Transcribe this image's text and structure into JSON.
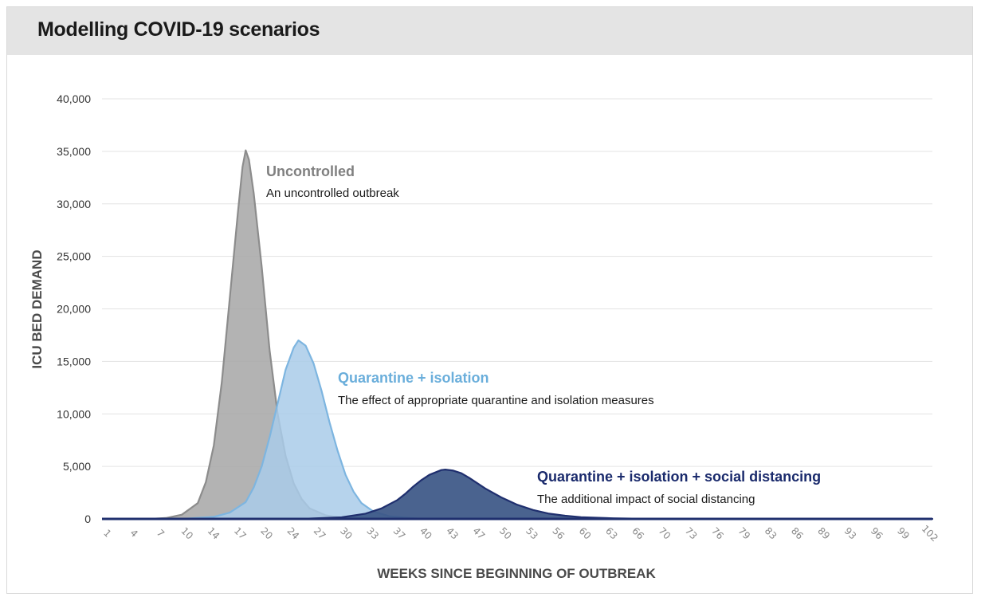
{
  "chart_data": {
    "type": "area",
    "title": "Modelling COVID-19 scenarios",
    "xlabel": "WEEKS SINCE BEGINNING OF OUTBREAK",
    "ylabel": "ICU BED DEMAND",
    "ylim": [
      0,
      40000
    ],
    "yticks": [
      {
        "value": 0,
        "label": "0"
      },
      {
        "value": 5000,
        "label": "5,000"
      },
      {
        "value": 10000,
        "label": "10,000"
      },
      {
        "value": 15000,
        "label": "15,000"
      },
      {
        "value": 20000,
        "label": "20,000"
      },
      {
        "value": 25000,
        "label": "25,000"
      },
      {
        "value": 30000,
        "label": "30,000"
      },
      {
        "value": 35000,
        "label": "35,000"
      },
      {
        "value": 40000,
        "label": "40,000"
      }
    ],
    "xlim": [
      0,
      104
    ],
    "xticks": [
      "1",
      "4",
      "7",
      "10",
      "14",
      "17",
      "20",
      "24",
      "27",
      "30",
      "33",
      "37",
      "40",
      "43",
      "47",
      "50",
      "53",
      "56",
      "60",
      "63",
      "66",
      "70",
      "73",
      "76",
      "79",
      "83",
      "86",
      "89",
      "93",
      "96",
      "99",
      "102"
    ],
    "grid": true,
    "series": [
      {
        "name": "Uncontrolled",
        "description": "An uncontrolled outbreak",
        "color": "#8c8c8c",
        "fill": "#a6a6a6",
        "points": [
          [
            6,
            0
          ],
          [
            8,
            80
          ],
          [
            10,
            400
          ],
          [
            12,
            1500
          ],
          [
            13,
            3500
          ],
          [
            14,
            7000
          ],
          [
            15,
            13000
          ],
          [
            16,
            21000
          ],
          [
            17,
            29000
          ],
          [
            17.6,
            33500
          ],
          [
            18,
            35100
          ],
          [
            18.4,
            34200
          ],
          [
            19,
            31000
          ],
          [
            20,
            24000
          ],
          [
            21,
            16000
          ],
          [
            22,
            10000
          ],
          [
            23,
            6000
          ],
          [
            24,
            3400
          ],
          [
            25,
            1900
          ],
          [
            26,
            1000
          ],
          [
            28,
            350
          ],
          [
            30,
            100
          ],
          [
            32,
            0
          ]
        ]
      },
      {
        "name": "Quarantine + isolation",
        "description": "The effect of appropriate quarantine and isolation measures",
        "color": "#7db5e0",
        "fill": "#a9cbe9",
        "points": [
          [
            10,
            0
          ],
          [
            14,
            200
          ],
          [
            16,
            600
          ],
          [
            18,
            1600
          ],
          [
            19,
            3000
          ],
          [
            20,
            5000
          ],
          [
            21,
            7800
          ],
          [
            22,
            11000
          ],
          [
            23,
            14200
          ],
          [
            24,
            16300
          ],
          [
            24.6,
            17000
          ],
          [
            25.5,
            16500
          ],
          [
            26.5,
            14800
          ],
          [
            27.5,
            12200
          ],
          [
            28.5,
            9200
          ],
          [
            29.5,
            6500
          ],
          [
            30.5,
            4200
          ],
          [
            31.5,
            2600
          ],
          [
            32.5,
            1500
          ],
          [
            34,
            700
          ],
          [
            36,
            250
          ],
          [
            40,
            0
          ]
        ]
      },
      {
        "name": "Quarantine + isolation + social distancing",
        "description": "The additional impact of social distancing",
        "color": "#1f2f6e",
        "fill": "#3b5685",
        "points": [
          [
            25,
            0
          ],
          [
            30,
            150
          ],
          [
            33,
            500
          ],
          [
            35,
            1000
          ],
          [
            37,
            1800
          ],
          [
            38,
            2400
          ],
          [
            39,
            3100
          ],
          [
            40,
            3700
          ],
          [
            41,
            4200
          ],
          [
            42,
            4500
          ],
          [
            42.5,
            4650
          ],
          [
            43,
            4700
          ],
          [
            44,
            4600
          ],
          [
            45,
            4350
          ],
          [
            46,
            3900
          ],
          [
            47,
            3400
          ],
          [
            48,
            2900
          ],
          [
            50,
            2050
          ],
          [
            52,
            1350
          ],
          [
            54,
            850
          ],
          [
            56,
            500
          ],
          [
            58,
            300
          ],
          [
            60,
            170
          ],
          [
            64,
            60
          ],
          [
            68,
            15
          ],
          [
            72,
            0
          ],
          [
            104,
            0
          ]
        ]
      }
    ]
  }
}
